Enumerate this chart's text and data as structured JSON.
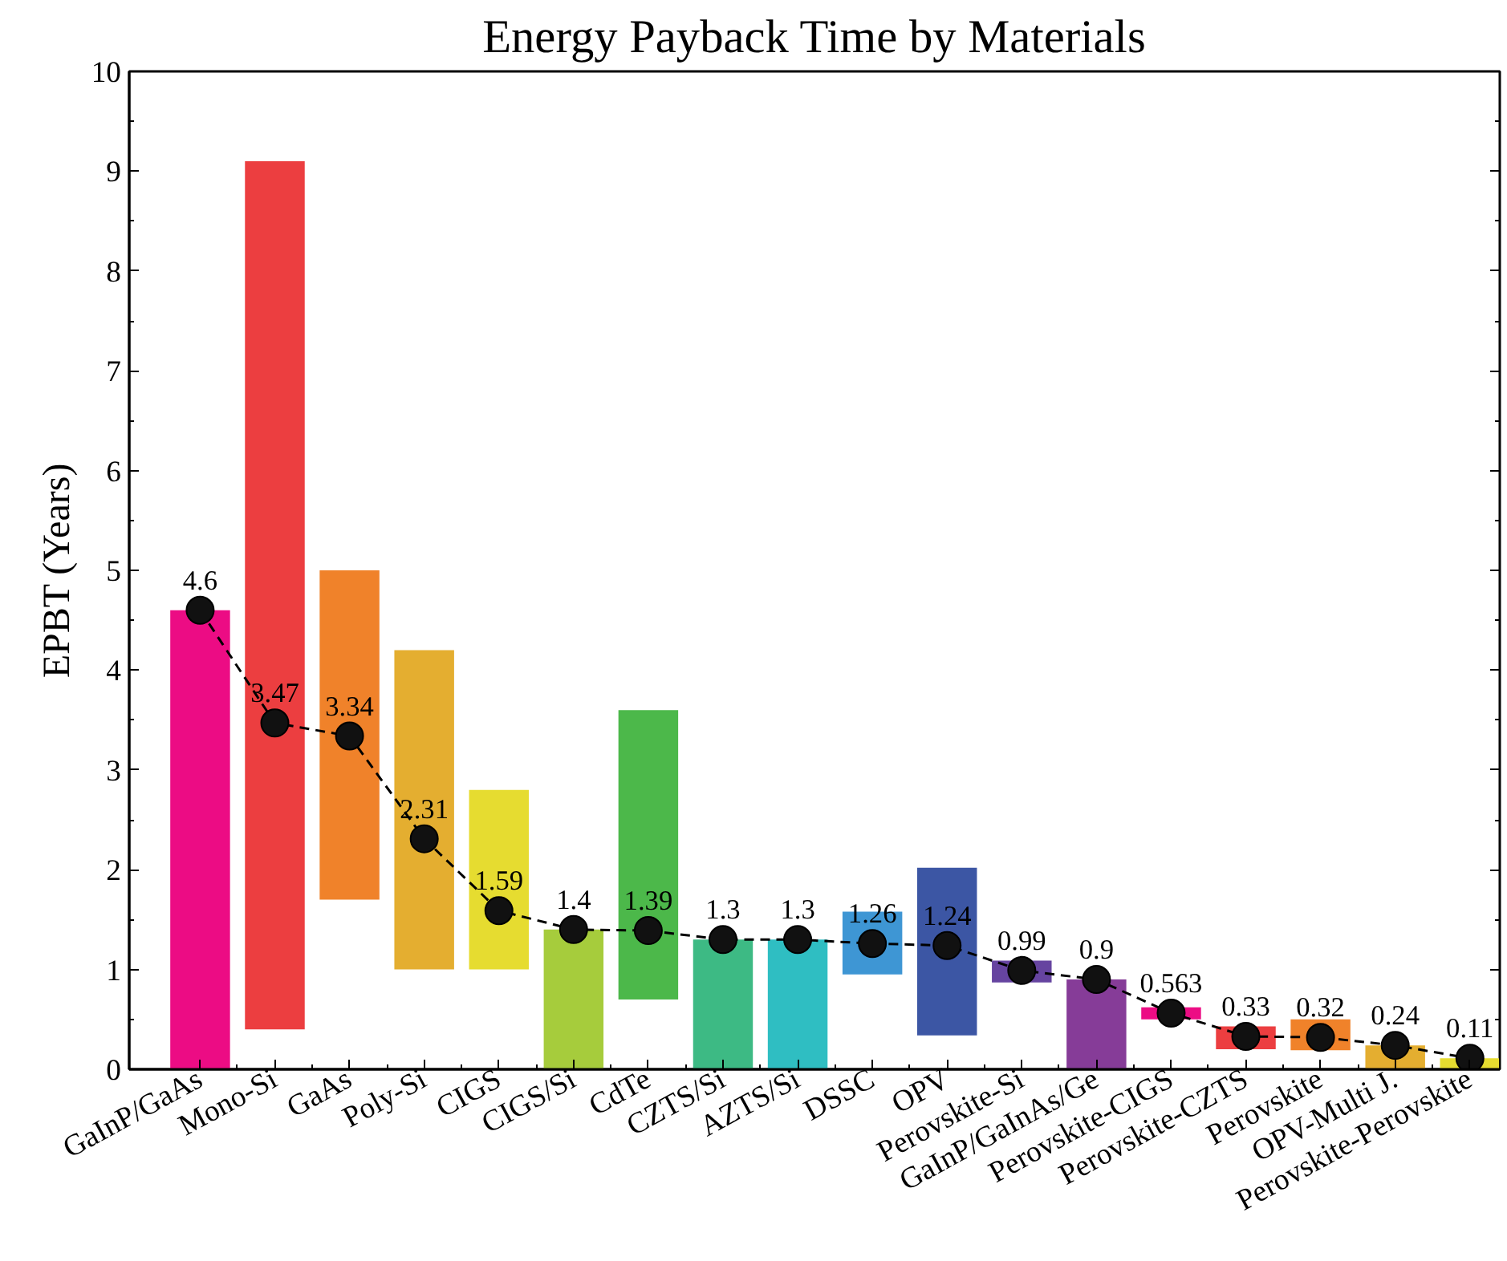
{
  "chart_data": {
    "type": "bar",
    "title": "Energy Payback Time by Materials",
    "ylabel": "EPBT (Years)",
    "categories": [
      "GaInP/GaAs",
      "Mono-Si",
      "GaAs",
      "Poly-Si",
      "CIGS",
      "CIGS/Si",
      "CdTe",
      "CZTS/Si",
      "AZTS/Si",
      "DSSC",
      "OPV",
      "Perovskite-Si",
      "GaInP/GaInAs/Ge",
      "Perovskite-CIGS",
      "Perovskite-CZTS",
      "Perovskite",
      "OPV-Multi J.",
      "Perovskite-Perovskite"
    ],
    "ylim": [
      0,
      10
    ],
    "yticks": [
      0,
      1,
      2,
      3,
      4,
      5,
      6,
      7,
      8,
      9,
      10
    ],
    "grid": false,
    "series": [
      {
        "base": [
          0,
          0.4,
          1.7,
          1.0,
          1.0,
          0,
          0.7,
          0,
          0,
          0.95,
          0.34,
          0.87,
          0,
          0.5,
          0.2,
          0.19,
          0,
          0
        ],
        "values": [
          4.6,
          8.7,
          3.3,
          3.2,
          1.8,
          1.4,
          2.9,
          1.3,
          1.3,
          0.63,
          1.68,
          0.22,
          0.9,
          0.12,
          0.23,
          0.31,
          0.24,
          0.11
        ],
        "colors": [
          "#ec0c84",
          "#ec3e40",
          "#f0822a",
          "#e4ae30",
          "#e6dc30",
          "#a6cc3c",
          "#4cb84a",
          "#3dba84",
          "#2fbec2",
          "#3e96d4",
          "#3c56a4",
          "#6644a0",
          "#863c98",
          "#ec0c84",
          "#ec3e40",
          "#f0822a",
          "#e4ae30",
          "#e6dc30"
        ]
      },
      {
        "type": "line",
        "color": "#000000",
        "marker": "circle",
        "line_style": "dashed",
        "values": [
          4.6,
          3.47,
          3.34,
          2.31,
          1.59,
          1.4,
          1.39,
          1.3,
          1.3,
          1.26,
          1.24,
          0.99,
          0.9,
          0.563,
          0.33,
          0.32,
          0.24,
          0.11
        ],
        "value_labels": [
          "4.6",
          "3.47",
          "3.34",
          "2.31",
          "1.59",
          "1.4",
          "1.39",
          "1.3",
          "1.3",
          "1.26",
          "1.24",
          "0.99",
          "0.9",
          "0.563",
          "0.33",
          "0.32",
          "0.24",
          "0.11"
        ]
      }
    ]
  }
}
